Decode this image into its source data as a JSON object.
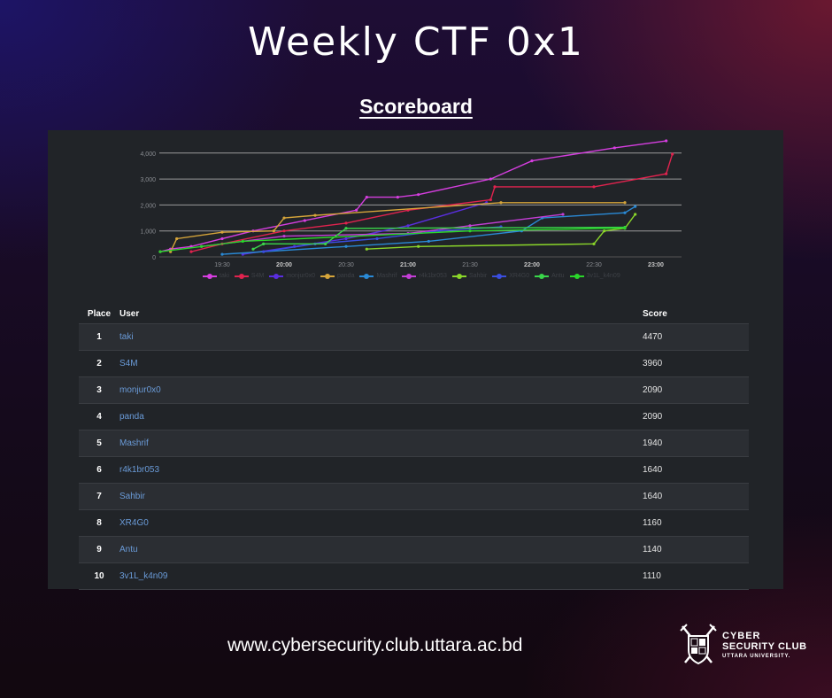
{
  "header": {
    "title": "Weekly CTF 0x1",
    "subtitle": "Scoreboard"
  },
  "table": {
    "columns": [
      "Place",
      "User",
      "Score"
    ],
    "rows": [
      {
        "place": "1",
        "user": "taki",
        "score": "4470"
      },
      {
        "place": "2",
        "user": "S4M",
        "score": "3960"
      },
      {
        "place": "3",
        "user": "monjur0x0",
        "score": "2090"
      },
      {
        "place": "4",
        "user": "panda",
        "score": "2090"
      },
      {
        "place": "5",
        "user": "Mashrif",
        "score": "1940"
      },
      {
        "place": "6",
        "user": "r4k1br053",
        "score": "1640"
      },
      {
        "place": "7",
        "user": "Sahbir",
        "score": "1640"
      },
      {
        "place": "8",
        "user": "XR4G0",
        "score": "1160"
      },
      {
        "place": "9",
        "user": "Antu",
        "score": "1140"
      },
      {
        "place": "10",
        "user": "3v1L_k4n09",
        "score": "1110"
      }
    ]
  },
  "footer": {
    "url": "www.cybersecurity.club.uttara.ac.bd",
    "logo_line1": "CYBER",
    "logo_line2": "SECURITY CLUB",
    "logo_line3": "UTTARA UNIVERSITY."
  },
  "chart_data": {
    "type": "line",
    "title": "",
    "xlabel": "",
    "ylabel": "",
    "x_ticks": [
      "19:30",
      "20:00",
      "20:30",
      "21:00",
      "21:30",
      "22:00",
      "22:30",
      "23:00"
    ],
    "y_ticks": [
      0,
      1000,
      2000,
      3000,
      4000
    ],
    "ylim": [
      0,
      4500
    ],
    "grid": true,
    "legend_position": "bottom",
    "series": [
      {
        "name": "taki",
        "color": "#d63ee0",
        "points": [
          [
            "19:00",
            200
          ],
          [
            "19:05",
            300
          ],
          [
            "19:15",
            400
          ],
          [
            "19:30",
            700
          ],
          [
            "19:45",
            1000
          ],
          [
            "20:10",
            1400
          ],
          [
            "20:35",
            1800
          ],
          [
            "20:40",
            2300
          ],
          [
            "20:55",
            2300
          ],
          [
            "21:05",
            2400
          ],
          [
            "21:40",
            3000
          ],
          [
            "22:00",
            3700
          ],
          [
            "22:40",
            4200
          ],
          [
            "23:05",
            4470
          ]
        ]
      },
      {
        "name": "S4M",
        "color": "#e0234e",
        "points": [
          [
            "19:15",
            200
          ],
          [
            "19:30",
            500
          ],
          [
            "20:00",
            1000
          ],
          [
            "20:30",
            1300
          ],
          [
            "21:00",
            1800
          ],
          [
            "21:40",
            2200
          ],
          [
            "21:42",
            2700
          ],
          [
            "22:30",
            2700
          ],
          [
            "23:05",
            3200
          ],
          [
            "23:08",
            3960
          ]
        ]
      },
      {
        "name": "monjur0x0",
        "color": "#5a2ee0",
        "points": [
          [
            "19:40",
            100
          ],
          [
            "20:05",
            400
          ],
          [
            "20:30",
            700
          ],
          [
            "21:00",
            1200
          ],
          [
            "21:38",
            2090
          ]
        ]
      },
      {
        "name": "panda",
        "color": "#d6a53a",
        "points": [
          [
            "19:05",
            200
          ],
          [
            "19:08",
            700
          ],
          [
            "19:30",
            950
          ],
          [
            "19:55",
            1000
          ],
          [
            "20:00",
            1500
          ],
          [
            "20:15",
            1600
          ],
          [
            "21:45",
            2090
          ],
          [
            "22:45",
            2090
          ]
        ]
      },
      {
        "name": "Mashrif",
        "color": "#2a8ad6",
        "points": [
          [
            "19:30",
            100
          ],
          [
            "20:30",
            400
          ],
          [
            "21:10",
            600
          ],
          [
            "21:55",
            1000
          ],
          [
            "22:05",
            1500
          ],
          [
            "22:45",
            1700
          ],
          [
            "22:50",
            1940
          ]
        ]
      },
      {
        "name": "r4k1br053",
        "color": "#c43ed6",
        "points": [
          [
            "19:20",
            400
          ],
          [
            "20:00",
            800
          ],
          [
            "21:00",
            900
          ],
          [
            "21:30",
            1200
          ],
          [
            "22:15",
            1640
          ]
        ]
      },
      {
        "name": "Sahbir",
        "color": "#8ad62a",
        "points": [
          [
            "20:40",
            300
          ],
          [
            "21:05",
            400
          ],
          [
            "22:30",
            500
          ],
          [
            "22:35",
            1000
          ],
          [
            "22:45",
            1100
          ],
          [
            "22:50",
            1640
          ]
        ]
      },
      {
        "name": "XR4G0",
        "color": "#3a4ee0",
        "points": [
          [
            "19:50",
            200
          ],
          [
            "20:15",
            500
          ],
          [
            "20:45",
            700
          ],
          [
            "21:15",
            1000
          ],
          [
            "21:45",
            1160
          ]
        ]
      },
      {
        "name": "Antu",
        "color": "#3ad64a",
        "points": [
          [
            "19:45",
            300
          ],
          [
            "19:50",
            500
          ],
          [
            "20:20",
            500
          ],
          [
            "20:30",
            1100
          ],
          [
            "22:45",
            1140
          ]
        ]
      },
      {
        "name": "3v1L_k4n09",
        "color": "#2ad62a",
        "points": [
          [
            "19:00",
            200
          ],
          [
            "19:20",
            400
          ],
          [
            "19:40",
            600
          ],
          [
            "21:30",
            1000
          ],
          [
            "22:45",
            1110
          ]
        ]
      }
    ]
  }
}
